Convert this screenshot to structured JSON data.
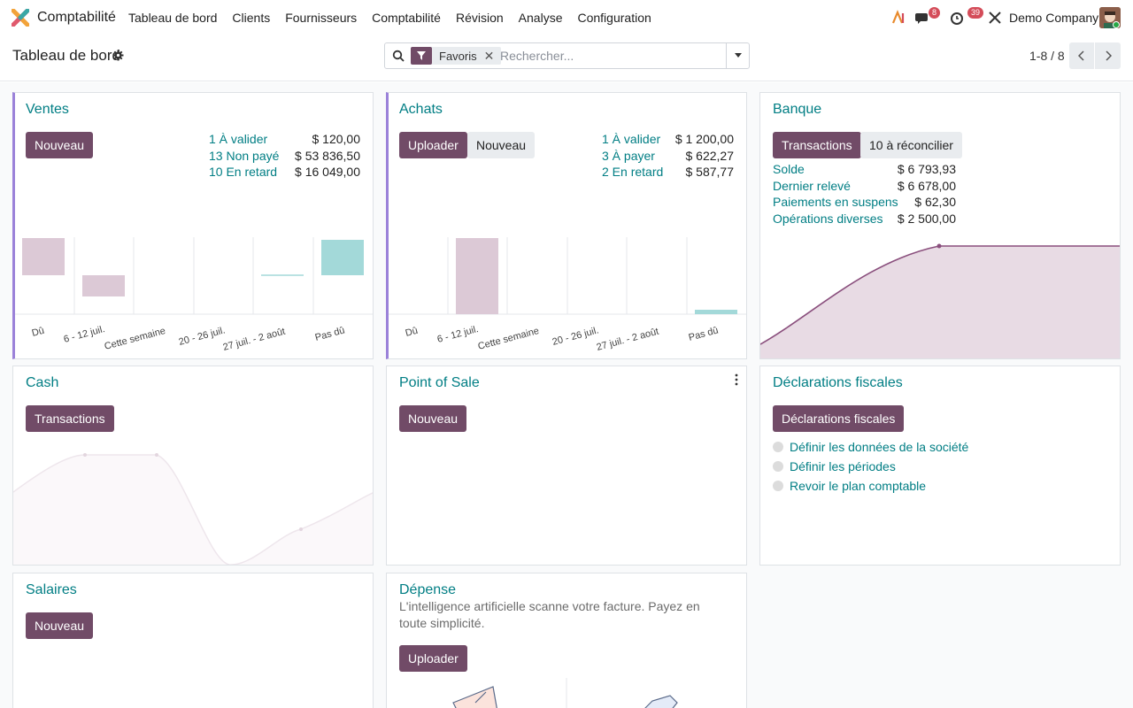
{
  "app": {
    "name": "Comptabilité"
  },
  "menu": [
    "Tableau de bord",
    "Clients",
    "Fournisseurs",
    "Comptabilité",
    "Révision",
    "Analyse",
    "Configuration"
  ],
  "systray": {
    "messages_count": "8",
    "activities_count": "39",
    "company": "Demo Company"
  },
  "control_panel": {
    "breadcrumb": "Tableau de bord",
    "facet_label": "Favoris",
    "search_placeholder": "Rechercher...",
    "pager": "1-8 / 8"
  },
  "cards": {
    "ventes": {
      "title": "Ventes",
      "button": "Nouveau",
      "stats": [
        {
          "label": "1 À valider",
          "value": "$ 120,00"
        },
        {
          "label": "13 Non payé",
          "value": "$ 53 836,50"
        },
        {
          "label": "10 En retard",
          "value": "$ 16 049,00"
        }
      ],
      "ticks": [
        "Dû",
        "6 - 12 juil.",
        "Cette semaine",
        "20 - 26 juil.",
        "27 juil. - 2 août",
        "Pas dû"
      ]
    },
    "achats": {
      "title": "Achats",
      "button_upload": "Uploader",
      "button_new": "Nouveau",
      "stats": [
        {
          "label": "1 À valider",
          "value": "$ 1 200,00"
        },
        {
          "label": "3 À payer",
          "value": "$ 622,27"
        },
        {
          "label": "2 En retard",
          "value": "$ 587,77"
        }
      ],
      "ticks": [
        "Dû",
        "6 - 12 juil.",
        "Cette semaine",
        "20 - 26 juil.",
        "27 juil. - 2 août",
        "Pas dû"
      ]
    },
    "banque": {
      "title": "Banque",
      "button_transactions": "Transactions",
      "button_reconcile": "10 à réconcilier",
      "stats": [
        {
          "label": "Solde",
          "value": "$ 6 793,93"
        },
        {
          "label": "Dernier relevé",
          "value": "$ 6 678,00"
        },
        {
          "label": "Paiements en suspens",
          "value": "$ 62,30"
        },
        {
          "label": "Opérations diverses",
          "value": "$ 2 500,00"
        }
      ]
    },
    "cash": {
      "title": "Cash",
      "button": "Transactions"
    },
    "pos": {
      "title": "Point of Sale",
      "button": "Nouveau"
    },
    "fiscal": {
      "title": "Déclarations fiscales",
      "button": "Déclarations fiscales",
      "todos": [
        "Définir les données de la société",
        "Définir les périodes",
        "Revoir le plan comptable"
      ]
    },
    "salaires": {
      "title": "Salaires",
      "button": "Nouveau"
    },
    "depense": {
      "title": "Dépense",
      "description": "L'intelligence artificielle scanne votre facture. Payez en toute simplicité.",
      "button": "Uploader"
    }
  },
  "colors": {
    "brand": "#714b67",
    "link": "#017e84",
    "bar_past": "#dcc9d6",
    "bar_future": "#a3d9d9"
  }
}
